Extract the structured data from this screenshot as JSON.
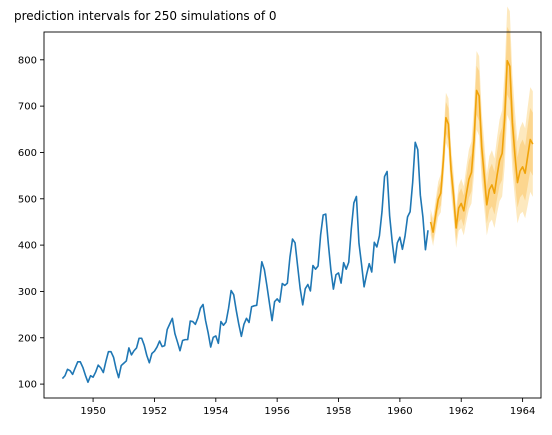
{
  "chart_data": {
    "type": "line",
    "title": "prediction intervals for 250 simulations of 0",
    "xlabel": "",
    "ylabel": "",
    "xlim": [
      1948.4,
      1964.6
    ],
    "ylim": [
      70,
      860
    ],
    "xticks": [
      1950,
      1952,
      1954,
      1956,
      1958,
      1960,
      1962,
      1964
    ],
    "yticks": [
      100,
      200,
      300,
      400,
      500,
      600,
      700,
      800
    ],
    "grid": false,
    "colors": {
      "history": "#1f77b4",
      "forecast": "#f0a30a",
      "interval_outer": "#fde7b8",
      "interval_inner": "#fbd183"
    },
    "series": [
      {
        "role": "history",
        "x_start": 1949.0,
        "x_step": 0.0833333,
        "values": [
          112,
          118,
          132,
          129,
          121,
          135,
          148,
          148,
          136,
          119,
          104,
          118,
          115,
          126,
          141,
          135,
          125,
          149,
          170,
          170,
          158,
          133,
          114,
          140,
          145,
          150,
          178,
          163,
          172,
          178,
          199,
          199,
          184,
          162,
          146,
          166,
          171,
          180,
          193,
          181,
          183,
          218,
          230,
          242,
          209,
          191,
          172,
          194,
          196,
          196,
          236,
          235,
          229,
          243,
          264,
          272,
          237,
          211,
          180,
          201,
          204,
          188,
          235,
          227,
          234,
          264,
          302,
          293,
          259,
          229,
          203,
          229,
          242,
          233,
          267,
          269,
          270,
          315,
          364,
          347,
          312,
          274,
          237,
          278,
          284,
          277,
          317,
          313,
          318,
          374,
          413,
          405,
          355,
          306,
          271,
          306,
          315,
          301,
          356,
          348,
          355,
          422,
          465,
          467,
          404,
          347,
          305,
          336,
          340,
          318,
          362,
          348,
          363,
          435,
          491,
          505,
          404,
          359,
          310,
          337,
          360,
          342,
          406,
          396,
          420,
          472,
          548,
          559,
          463,
          407,
          362,
          405,
          417,
          391,
          419,
          461,
          472,
          535,
          622,
          606,
          508,
          461,
          390,
          432
        ]
      },
      {
        "role": "forecast",
        "x_start": 1961.0,
        "x_step": 0.0833333,
        "values": [
          450,
          428,
          465,
          499,
          512,
          582,
          675,
          661,
          563,
          508,
          437,
          480,
          490,
          474,
          510,
          542,
          557,
          626,
          734,
          722,
          612,
          551,
          487,
          520,
          530,
          512,
          550,
          583,
          598,
          675,
          798,
          786,
          665,
          595,
          535,
          560,
          569,
          555,
          592,
          628,
          618
        ]
      },
      {
        "role": "interval-80",
        "x_start": 1961.0,
        "x_step": 0.0833333,
        "lower": [
          432,
          409,
          443,
          475,
          486,
          552,
          641,
          626,
          532,
          478,
          410,
          449,
          457,
          441,
          473,
          502,
          516,
          580,
          681,
          668,
          565,
          507,
          447,
          476,
          484,
          466,
          500,
          529,
          541,
          611,
          725,
          712,
          601,
          537,
          481,
          503,
          510,
          496,
          528,
          560,
          550
        ],
        "upper": [
          468,
          447,
          487,
          523,
          538,
          612,
          709,
          696,
          594,
          538,
          464,
          511,
          523,
          507,
          547,
          582,
          598,
          672,
          787,
          776,
          659,
          595,
          527,
          564,
          576,
          558,
          600,
          637,
          655,
          739,
          871,
          860,
          729,
          653,
          589,
          617,
          628,
          614,
          656,
          696,
          686
        ]
      },
      {
        "role": "interval-95",
        "x_start": 1961.0,
        "x_step": 0.0833333,
        "lower": [
          422,
          398,
          431,
          461,
          471,
          535,
          621,
          605,
          513,
          460,
          394,
          431,
          437,
          421,
          451,
          478,
          490,
          551,
          649,
          636,
          536,
          480,
          421,
          448,
          455,
          437,
          468,
          495,
          505,
          570,
          681,
          667,
          561,
          500,
          447,
          467,
          472,
          458,
          486,
          515,
          504
        ],
        "upper": [
          478,
          458,
          499,
          537,
          553,
          629,
          729,
          717,
          613,
          556,
          480,
          529,
          543,
          527,
          569,
          606,
          624,
          701,
          819,
          808,
          688,
          622,
          553,
          592,
          605,
          587,
          632,
          671,
          691,
          780,
          915,
          905,
          769,
          690,
          623,
          653,
          666,
          652,
          698,
          741,
          732
        ]
      }
    ]
  }
}
